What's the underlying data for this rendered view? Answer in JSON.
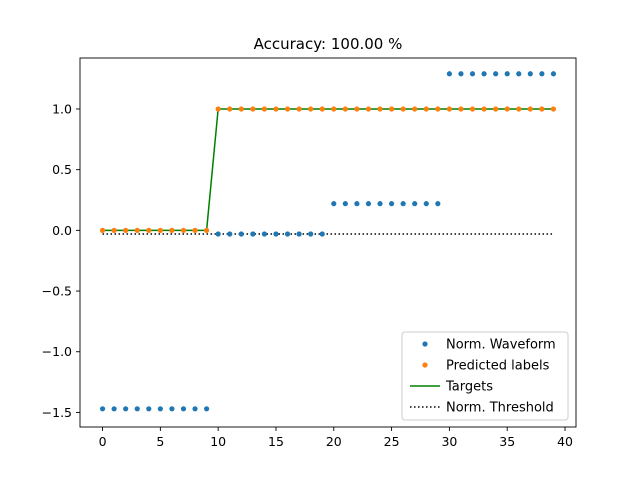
{
  "chart_data": {
    "type": "line",
    "title": "Accuracy: 100.00 %",
    "xlabel": "",
    "ylabel": "",
    "xlim": [
      -1.95,
      40.95
    ],
    "ylim": [
      -1.62,
      1.42
    ],
    "xticks": [
      0,
      5,
      10,
      15,
      20,
      25,
      30,
      35,
      40
    ],
    "xtick_labels": [
      "0",
      "5",
      "10",
      "15",
      "20",
      "25",
      "30",
      "35",
      "40"
    ],
    "yticks": [
      -1.5,
      -1.0,
      -0.5,
      0.0,
      0.5,
      1.0
    ],
    "ytick_labels": [
      "−1.5",
      "−1.0",
      "−0.5",
      "0.0",
      "0.5",
      "1.0"
    ],
    "grid": false,
    "legend_position": "lower-right",
    "series": [
      {
        "name": "Norm. Waveform",
        "style": "markers",
        "color": "#1f77b4",
        "x": [
          0,
          1,
          2,
          3,
          4,
          5,
          6,
          7,
          8,
          9,
          10,
          11,
          12,
          13,
          14,
          15,
          16,
          17,
          18,
          19,
          20,
          21,
          22,
          23,
          24,
          25,
          26,
          27,
          28,
          29,
          30,
          31,
          32,
          33,
          34,
          35,
          36,
          37,
          38,
          39
        ],
        "y": [
          -1.47,
          -1.47,
          -1.47,
          -1.47,
          -1.47,
          -1.47,
          -1.47,
          -1.47,
          -1.47,
          -1.47,
          -0.03,
          -0.03,
          -0.03,
          -0.03,
          -0.03,
          -0.03,
          -0.03,
          -0.03,
          -0.03,
          -0.03,
          0.22,
          0.22,
          0.22,
          0.22,
          0.22,
          0.22,
          0.22,
          0.22,
          0.22,
          0.22,
          1.29,
          1.29,
          1.29,
          1.29,
          1.29,
          1.29,
          1.29,
          1.29,
          1.29,
          1.29
        ]
      },
      {
        "name": "Predicted labels",
        "style": "markers",
        "color": "#ff7f0e",
        "x": [
          0,
          1,
          2,
          3,
          4,
          5,
          6,
          7,
          8,
          9,
          10,
          11,
          12,
          13,
          14,
          15,
          16,
          17,
          18,
          19,
          20,
          21,
          22,
          23,
          24,
          25,
          26,
          27,
          28,
          29,
          30,
          31,
          32,
          33,
          34,
          35,
          36,
          37,
          38,
          39
        ],
        "y": [
          0,
          0,
          0,
          0,
          0,
          0,
          0,
          0,
          0,
          0,
          1,
          1,
          1,
          1,
          1,
          1,
          1,
          1,
          1,
          1,
          1,
          1,
          1,
          1,
          1,
          1,
          1,
          1,
          1,
          1,
          1,
          1,
          1,
          1,
          1,
          1,
          1,
          1,
          1,
          1
        ]
      },
      {
        "name": "Targets",
        "style": "solid-line",
        "color": "#008000",
        "x": [
          0,
          1,
          2,
          3,
          4,
          5,
          6,
          7,
          8,
          9,
          10,
          11,
          12,
          13,
          14,
          15,
          16,
          17,
          18,
          19,
          20,
          21,
          22,
          23,
          24,
          25,
          26,
          27,
          28,
          29,
          30,
          31,
          32,
          33,
          34,
          35,
          36,
          37,
          38,
          39
        ],
        "y": [
          0,
          0,
          0,
          0,
          0,
          0,
          0,
          0,
          0,
          0,
          1,
          1,
          1,
          1,
          1,
          1,
          1,
          1,
          1,
          1,
          1,
          1,
          1,
          1,
          1,
          1,
          1,
          1,
          1,
          1,
          1,
          1,
          1,
          1,
          1,
          1,
          1,
          1,
          1,
          1
        ]
      },
      {
        "name": "Norm. Threshold",
        "style": "dotted-line",
        "color": "#000000",
        "x": [
          0,
          39
        ],
        "y": [
          -0.03,
          -0.03
        ]
      }
    ]
  }
}
